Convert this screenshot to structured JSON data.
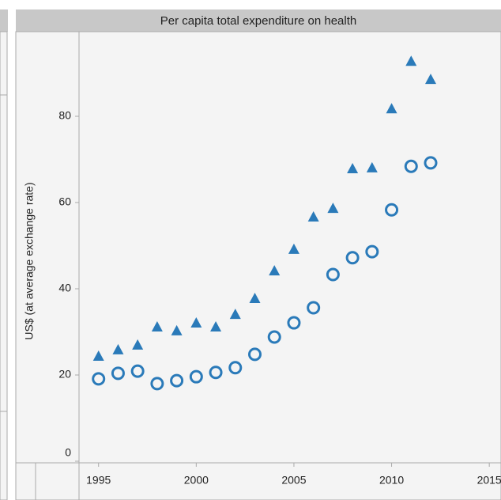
{
  "chart_data": {
    "type": "scatter",
    "title": "Per capita total expenditure on health",
    "ylabel": "US$ (at average exchange rate)",
    "x": [
      1995,
      1996,
      1997,
      1998,
      1999,
      2000,
      2001,
      2002,
      2003,
      2004,
      2005,
      2006,
      2007,
      2008,
      2009,
      2010,
      2011,
      2012
    ],
    "series": [
      {
        "marker": "triangle",
        "color": "#2a7ab9",
        "values": [
          24.4,
          25.9,
          27.0,
          31.2,
          30.3,
          32.1,
          31.2,
          34.1,
          37.8,
          44.2,
          49.2,
          56.7,
          58.7,
          67.9,
          68.1,
          81.8,
          92.8,
          88.6
        ]
      },
      {
        "marker": "circle",
        "color": "#2a7ab9",
        "values": [
          19.1,
          20.4,
          20.9,
          18.0,
          18.7,
          19.6,
          20.6,
          21.7,
          24.8,
          28.8,
          32.1,
          35.6,
          43.3,
          47.2,
          48.6,
          58.3,
          68.4,
          69.2
        ]
      }
    ],
    "xlim": [
      1994,
      2015.6
    ],
    "xticks": [
      1995,
      2000,
      2005,
      2010,
      2015
    ],
    "ylim": [
      0,
      100
    ],
    "yticks": [
      0,
      20,
      40,
      60,
      80
    ]
  }
}
